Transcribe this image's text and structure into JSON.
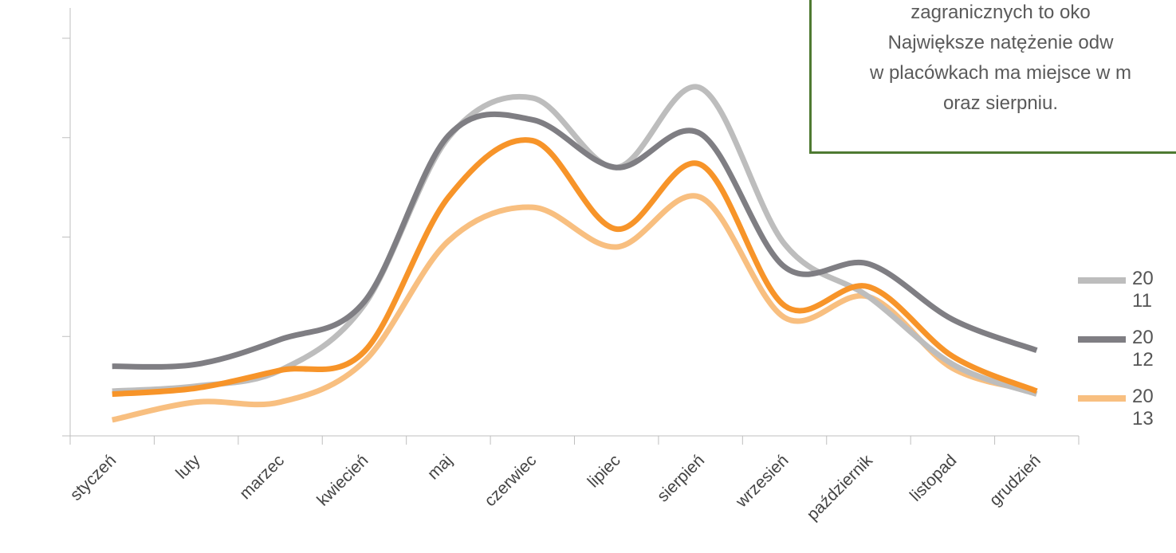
{
  "chart_data": {
    "type": "line",
    "title": "",
    "xlabel": "",
    "ylabel": "",
    "categories": [
      "styczeń",
      "luty",
      "marzec",
      "kwiecień",
      "maj",
      "czerwiec",
      "lipiec",
      "sierpień",
      "wrzesień",
      "październik",
      "listopad",
      "grudzień"
    ],
    "ylim": [
      0,
      4
    ],
    "grid": false,
    "legend_position": "right",
    "series": [
      {
        "name": "2011",
        "color": "#bdbdbd",
        "values": [
          0.45,
          0.5,
          0.66,
          1.32,
          3.0,
          3.4,
          2.7,
          3.5,
          1.93,
          1.4,
          0.72,
          0.42
        ]
      },
      {
        "name": "2012",
        "color": "#7f7e83",
        "values": [
          0.7,
          0.72,
          0.97,
          1.35,
          3.02,
          3.18,
          2.7,
          3.04,
          1.7,
          1.73,
          1.17,
          0.86
        ]
      },
      {
        "name": "2013",
        "color": "#f8bf80",
        "values": [
          0.16,
          0.34,
          0.34,
          0.75,
          1.96,
          2.3,
          1.9,
          2.4,
          1.19,
          1.4,
          0.68,
          0.45
        ]
      }
    ],
    "extra_series": [
      {
        "color": "#f79429",
        "values": [
          0.42,
          0.48,
          0.66,
          0.85,
          2.4,
          2.97,
          2.08,
          2.73,
          1.31,
          1.5,
          0.8,
          0.45
        ]
      }
    ]
  },
  "callout": {
    "lines": [
      "zagranicznych to oko",
      "Największe natężenie odw",
      "w placówkach ma miejsce w m",
      "oraz sierpniu."
    ]
  },
  "legend": {
    "items": [
      {
        "label": "2011",
        "color": "#bdbdbd"
      },
      {
        "label": "2012",
        "color": "#7f7e83"
      },
      {
        "label": "2013",
        "color": "#f8bf80"
      }
    ]
  }
}
